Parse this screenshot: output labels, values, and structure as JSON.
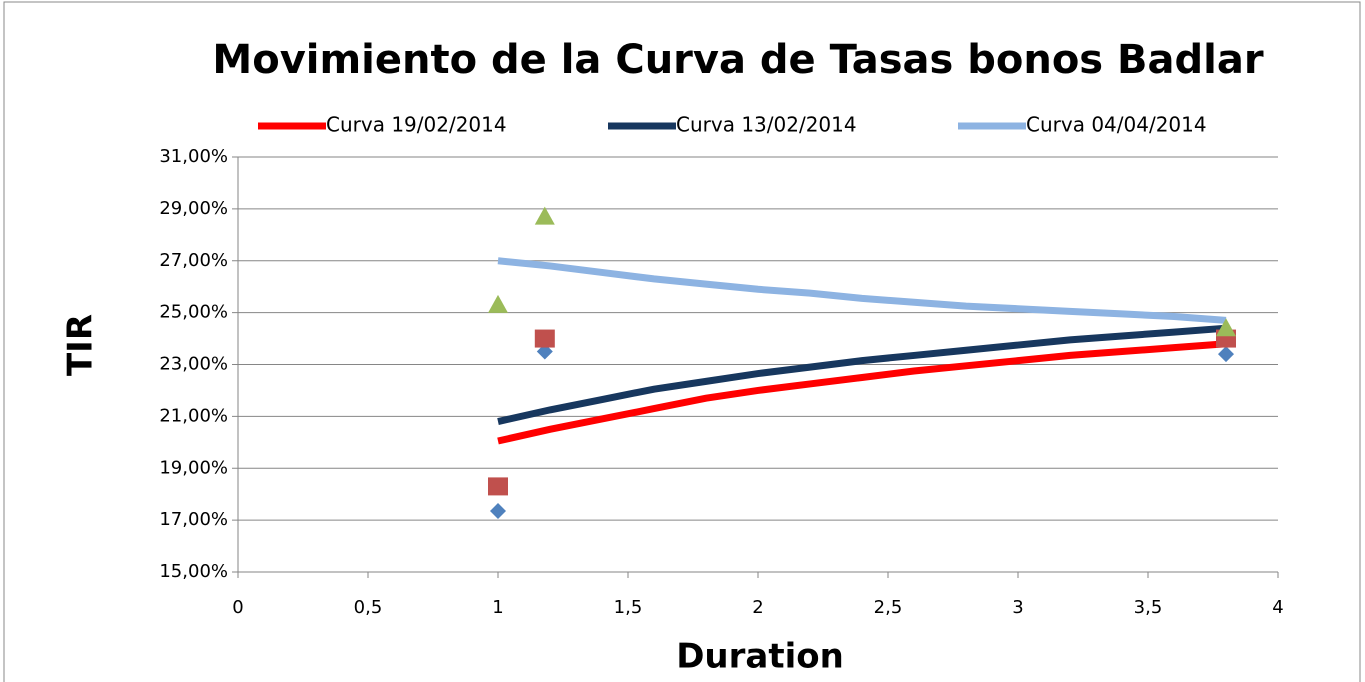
{
  "chart_data": {
    "type": "scatter",
    "title": "Movimiento de la Curva de Tasas bonos Badlar",
    "x_label": "Duration",
    "y_label": "TIR",
    "xlim": [
      0,
      4
    ],
    "xticks": [
      0,
      {
        "value": 0.5,
        "label": "0,5"
      },
      1,
      {
        "value": 1.5,
        "label": "1,5"
      },
      2,
      {
        "value": 2.5,
        "label": "2,5"
      },
      3,
      {
        "value": 3.5,
        "label": "3,5"
      },
      4
    ],
    "ylim": [
      15,
      31
    ],
    "yticks": [
      {
        "value": 15,
        "label": "15,00%"
      },
      {
        "value": 17,
        "label": "17,00%"
      },
      {
        "value": 19,
        "label": "19,00%"
      },
      {
        "value": 21,
        "label": "21,00%"
      },
      {
        "value": 23,
        "label": "23,00%"
      },
      {
        "value": 25,
        "label": "25,00%"
      },
      {
        "value": 27,
        "label": "27,00%"
      },
      {
        "value": 29,
        "label": "29,00%"
      },
      {
        "value": 31,
        "label": "31,00%"
      }
    ],
    "grid": true,
    "legend": "top",
    "series": [
      {
        "name": "Curva 19/02/2014",
        "color": "#ff0000",
        "mode": "line",
        "x": [
          1,
          1.2,
          1.4,
          1.6,
          1.8,
          2,
          2.2,
          2.4,
          2.6,
          2.8,
          3,
          3.2,
          3.4,
          3.6,
          3.8
        ],
        "values": [
          20.05,
          20.5,
          20.9,
          21.3,
          21.7,
          22.0,
          22.25,
          22.5,
          22.75,
          22.95,
          23.15,
          23.35,
          23.5,
          23.65,
          23.8
        ]
      },
      {
        "name": "Curva 13/02/2014",
        "color": "#17375e",
        "mode": "line",
        "x": [
          1,
          1.2,
          1.4,
          1.6,
          1.8,
          2,
          2.2,
          2.4,
          2.6,
          2.8,
          3,
          3.2,
          3.4,
          3.6,
          3.8
        ],
        "values": [
          20.8,
          21.25,
          21.65,
          22.05,
          22.35,
          22.65,
          22.9,
          23.15,
          23.35,
          23.55,
          23.75,
          23.95,
          24.1,
          24.25,
          24.4
        ]
      },
      {
        "name": "Curva 04/04/2014",
        "color": "#8db3e2",
        "mode": "line",
        "x": [
          1,
          1.2,
          1.4,
          1.6,
          1.8,
          2,
          2.2,
          2.4,
          2.6,
          2.8,
          3,
          3.2,
          3.4,
          3.6,
          3.8
        ],
        "values": [
          27.0,
          26.8,
          26.55,
          26.3,
          26.1,
          25.9,
          25.75,
          25.55,
          25.4,
          25.25,
          25.15,
          25.05,
          24.95,
          24.85,
          24.7
        ]
      },
      {
        "color": "#4f81bd",
        "mode": "marker",
        "marker": "diamond",
        "x": [
          1,
          1.18,
          3.8
        ],
        "values": [
          17.35,
          23.5,
          23.4
        ]
      },
      {
        "color": "#c0504d",
        "mode": "marker",
        "marker": "square",
        "x": [
          1,
          1.18,
          3.8
        ],
        "values": [
          18.3,
          24.0,
          24.0
        ]
      },
      {
        "color": "#9bbb59",
        "mode": "marker",
        "marker": "triangle",
        "x": [
          1,
          1.18,
          3.8
        ],
        "values": [
          25.3,
          28.7,
          24.4
        ]
      }
    ]
  }
}
